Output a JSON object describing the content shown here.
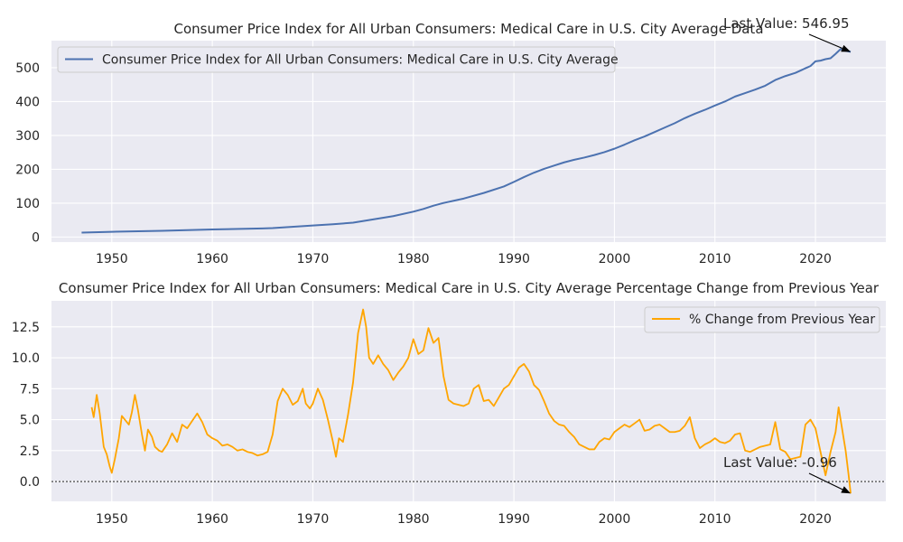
{
  "chart_data": [
    {
      "type": "line",
      "title": "Consumer Price Index for All Urban Consumers: Medical Care in U.S. City Average Data",
      "xlabel": "",
      "ylabel": "",
      "xlim": [
        1944,
        2027
      ],
      "ylim": [
        -15,
        580
      ],
      "x_ticks": [
        1950,
        1960,
        1970,
        1980,
        1990,
        2000,
        2010,
        2020
      ],
      "y_ticks": [
        0,
        100,
        200,
        300,
        400,
        500
      ],
      "grid": true,
      "legend_position": "top-left",
      "color": "#4c72b0",
      "series": [
        {
          "name": "Consumer Price Index for All Urban Consumers: Medical Care in U.S. City Average",
          "x": [
            1947.0,
            1950.0,
            1955.0,
            1960.0,
            1965.0,
            1966.0,
            1970.0,
            1972.0,
            1974.0,
            1976.0,
            1978.0,
            1980.0,
            1981.0,
            1982.0,
            1983.0,
            1985.0,
            1987.0,
            1989.0,
            1990.0,
            1991.0,
            1992.0,
            1993.0,
            1994.0,
            1995.0,
            1996.0,
            1997.0,
            1998.0,
            1999.0,
            2000.0,
            2001.0,
            2002.0,
            2003.0,
            2004.0,
            2005.0,
            2006.0,
            2007.0,
            2008.0,
            2009.0,
            2010.0,
            2011.0,
            2012.0,
            2013.0,
            2014.0,
            2015.0,
            2016.0,
            2017.0,
            2018.0,
            2019.0,
            2019.5,
            2020.0,
            2020.5,
            2021.0,
            2021.5,
            2022.0,
            2022.5,
            2023.0,
            2023.5
          ],
          "values": [
            13,
            15.5,
            18.5,
            22.3,
            25.2,
            26.3,
            34.0,
            37.6,
            42.4,
            52.0,
            61.8,
            74.9,
            82.9,
            92.5,
            100.6,
            113.5,
            130.1,
            149.3,
            162.8,
            177.0,
            190.1,
            201.4,
            211.0,
            220.5,
            228.2,
            234.6,
            242.1,
            250.6,
            260.8,
            272.8,
            285.6,
            297.1,
            310.1,
            323.2,
            336.2,
            351.1,
            364.1,
            375.6,
            388.4,
            400.3,
            414.9,
            425.1,
            435.3,
            446.8,
            463.7,
            475.3,
            484.7,
            498.4,
            505.0,
            518.9,
            521.0,
            525.3,
            528.0,
            541.0,
            555.0,
            550.0,
            546.95
          ]
        }
      ],
      "annotation": {
        "text": "Last Value: 546.95",
        "x": 2023.5,
        "y": 546.95
      }
    },
    {
      "type": "line",
      "title": "Consumer Price Index for All Urban Consumers: Medical Care in U.S. City Average Percentage Change from Previous Year",
      "xlabel": "",
      "ylabel": "",
      "xlim": [
        1944,
        2027
      ],
      "ylim": [
        -1.6,
        14.6
      ],
      "x_ticks": [
        1950,
        1960,
        1970,
        1980,
        1990,
        2000,
        2010,
        2020
      ],
      "y_ticks": [
        0.0,
        2.5,
        5.0,
        7.5,
        10.0,
        12.5
      ],
      "y_tick_labels": [
        "0.0",
        "2.5",
        "5.0",
        "7.5",
        "10.0",
        "12.5"
      ],
      "grid": true,
      "legend_position": "top-right",
      "color": "#ffa500",
      "zero_line": true,
      "series": [
        {
          "name": "% Change from Previous Year",
          "x": [
            1948.0,
            1948.2,
            1948.5,
            1948.8,
            1949.2,
            1949.5,
            1949.8,
            1950.0,
            1950.3,
            1950.7,
            1951.0,
            1951.3,
            1951.7,
            1952.0,
            1952.3,
            1952.6,
            1953.0,
            1953.3,
            1953.6,
            1954.0,
            1954.3,
            1954.7,
            1955.0,
            1955.5,
            1956.0,
            1956.5,
            1957.0,
            1957.5,
            1958.0,
            1958.5,
            1959.0,
            1959.5,
            1960.0,
            1960.5,
            1961.0,
            1961.5,
            1962.0,
            1962.5,
            1963.0,
            1963.5,
            1964.0,
            1964.5,
            1965.0,
            1965.5,
            1966.0,
            1966.5,
            1967.0,
            1967.5,
            1968.0,
            1968.5,
            1969.0,
            1969.3,
            1969.7,
            1970.0,
            1970.5,
            1971.0,
            1971.5,
            1972.0,
            1972.3,
            1972.6,
            1973.0,
            1973.5,
            1974.0,
            1974.5,
            1975.0,
            1975.3,
            1975.6,
            1976.0,
            1976.5,
            1977.0,
            1977.5,
            1978.0,
            1978.5,
            1979.0,
            1979.5,
            1980.0,
            1980.5,
            1981.0,
            1981.5,
            1982.0,
            1982.5,
            1983.0,
            1983.5,
            1984.0,
            1984.5,
            1985.0,
            1985.5,
            1986.0,
            1986.5,
            1987.0,
            1987.5,
            1988.0,
            1988.5,
            1989.0,
            1989.5,
            1990.0,
            1990.5,
            1991.0,
            1991.5,
            1992.0,
            1992.5,
            1993.0,
            1993.5,
            1994.0,
            1994.5,
            1995.0,
            1995.5,
            1996.0,
            1996.5,
            1997.0,
            1997.5,
            1998.0,
            1998.5,
            1999.0,
            1999.5,
            2000.0,
            2000.5,
            2001.0,
            2001.5,
            2002.0,
            2002.5,
            2003.0,
            2003.5,
            2004.0,
            2004.5,
            2005.0,
            2005.5,
            2006.0,
            2006.5,
            2007.0,
            2007.5,
            2008.0,
            2008.5,
            2009.0,
            2009.5,
            2010.0,
            2010.5,
            2011.0,
            2011.5,
            2012.0,
            2012.5,
            2013.0,
            2013.5,
            2014.0,
            2014.5,
            2015.0,
            2015.5,
            2016.0,
            2016.5,
            2017.0,
            2017.5,
            2018.0,
            2018.5,
            2019.0,
            2019.5,
            2020.0,
            2020.5,
            2021.0,
            2021.5,
            2022.0,
            2022.3,
            2022.6,
            2023.0,
            2023.3,
            2023.5
          ],
          "values": [
            6.0,
            5.2,
            7.0,
            5.5,
            2.8,
            2.2,
            1.2,
            0.7,
            1.8,
            3.5,
            5.3,
            5.0,
            4.6,
            5.6,
            7.0,
            5.8,
            3.8,
            2.5,
            4.2,
            3.6,
            2.8,
            2.5,
            2.4,
            3.0,
            3.9,
            3.2,
            4.6,
            4.3,
            4.9,
            5.5,
            4.8,
            3.8,
            3.5,
            3.3,
            2.9,
            3.0,
            2.8,
            2.5,
            2.6,
            2.4,
            2.3,
            2.1,
            2.2,
            2.4,
            3.8,
            6.5,
            7.5,
            7.0,
            6.2,
            6.5,
            7.5,
            6.3,
            5.9,
            6.3,
            7.5,
            6.6,
            5.0,
            3.2,
            2.0,
            3.5,
            3.2,
            5.4,
            8.0,
            12.0,
            13.9,
            12.5,
            10.0,
            9.5,
            10.2,
            9.5,
            9.0,
            8.2,
            8.8,
            9.3,
            10.0,
            11.5,
            10.3,
            10.6,
            12.4,
            11.2,
            11.6,
            8.5,
            6.6,
            6.3,
            6.2,
            6.1,
            6.3,
            7.5,
            7.8,
            6.5,
            6.6,
            6.1,
            6.8,
            7.5,
            7.8,
            8.5,
            9.2,
            9.5,
            8.9,
            7.8,
            7.4,
            6.5,
            5.5,
            4.9,
            4.6,
            4.5,
            4.0,
            3.6,
            3.0,
            2.8,
            2.6,
            2.6,
            3.2,
            3.5,
            3.4,
            4.0,
            4.3,
            4.6,
            4.4,
            4.7,
            5.0,
            4.1,
            4.2,
            4.5,
            4.6,
            4.3,
            4.0,
            4.0,
            4.1,
            4.5,
            5.2,
            3.5,
            2.7,
            3.0,
            3.2,
            3.5,
            3.2,
            3.1,
            3.3,
            3.8,
            3.9,
            2.5,
            2.4,
            2.6,
            2.8,
            2.9,
            3.0,
            4.8,
            2.6,
            2.4,
            1.8,
            1.9,
            2.0,
            4.6,
            5.0,
            4.3,
            2.4,
            0.5,
            2.4,
            4.0,
            6.0,
            4.5,
            2.5,
            0.5,
            -0.96
          ]
        }
      ],
      "annotation": {
        "text": "Last Value: -0.96",
        "x": 2023.5,
        "y": -0.96
      }
    }
  ]
}
